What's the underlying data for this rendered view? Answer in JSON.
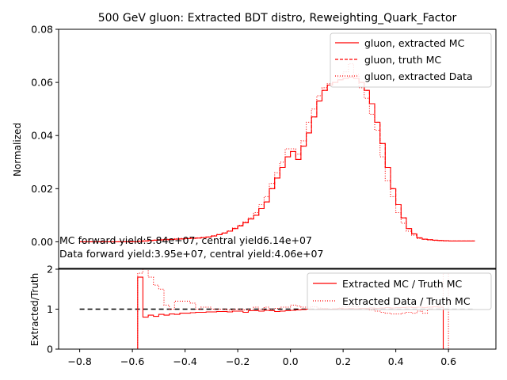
{
  "chart_data": [
    {
      "type": "line",
      "title": "500 GeV gluon: Extracted BDT distro, Reweighting_Quark_Factor",
      "ylabel": "Normalized",
      "xlim": [
        -0.88,
        0.78
      ],
      "ylim": [
        -0.01,
        0.08
      ],
      "yticks": [
        0.0,
        0.02,
        0.04,
        0.06,
        0.08
      ],
      "ytick_labels": [
        "0.00",
        "0.02",
        "0.04",
        "0.06",
        "0.08"
      ],
      "legend": "top-right",
      "bin_edges": [
        -0.8,
        -0.78,
        -0.76,
        -0.74,
        -0.72,
        -0.7,
        -0.68,
        -0.66,
        -0.64,
        -0.62,
        -0.6,
        -0.58,
        -0.56,
        -0.54,
        -0.52,
        -0.5,
        -0.48,
        -0.46,
        -0.44,
        -0.42,
        -0.4,
        -0.38,
        -0.36,
        -0.34,
        -0.32,
        -0.3,
        -0.28,
        -0.26,
        -0.24,
        -0.22,
        -0.2,
        -0.18,
        -0.16,
        -0.14,
        -0.12,
        -0.1,
        -0.08,
        -0.06,
        -0.04,
        -0.02,
        0.0,
        0.02,
        0.04,
        0.06,
        0.08,
        0.1,
        0.12,
        0.14,
        0.16,
        0.18,
        0.2,
        0.22,
        0.24,
        0.26,
        0.28,
        0.3,
        0.32,
        0.34,
        0.36,
        0.38,
        0.4,
        0.42,
        0.44,
        0.46,
        0.48,
        0.5,
        0.52,
        0.54,
        0.56,
        0.58,
        0.6,
        0.62,
        0.64,
        0.66,
        0.68,
        0.7
      ],
      "series": [
        {
          "name": "gluon, extracted MC",
          "style": "solid",
          "color": "#ff0000",
          "values": [
            0,
            0,
            0,
            0,
            0,
            0,
            0,
            0,
            0,
            0,
            0,
            0.0002,
            0.0003,
            0.0005,
            0.0006,
            0.0007,
            0.0008,
            0.0009,
            0.001,
            0.0011,
            0.0012,
            0.0013,
            0.0014,
            0.0016,
            0.0018,
            0.0022,
            0.0027,
            0.0033,
            0.004,
            0.005,
            0.006,
            0.0072,
            0.0086,
            0.01,
            0.0125,
            0.015,
            0.02,
            0.024,
            0.028,
            0.032,
            0.034,
            0.031,
            0.036,
            0.041,
            0.047,
            0.053,
            0.057,
            0.059,
            0.06,
            0.061,
            0.0615,
            0.062,
            0.0615,
            0.06,
            0.057,
            0.052,
            0.045,
            0.037,
            0.028,
            0.02,
            0.014,
            0.009,
            0.005,
            0.003,
            0.0015,
            0.001,
            0.0008,
            0.0006,
            0.0005,
            0.0004,
            0.0003,
            0.0003,
            0.0003,
            0.0003,
            0.0003
          ]
        },
        {
          "name": "gluon, truth MC",
          "style": "dashed",
          "color": "#ff0000",
          "values": [
            0,
            0,
            0,
            0,
            0,
            0,
            0,
            0,
            0,
            0,
            0,
            0.0002,
            0.0003,
            0.0005,
            0.0006,
            0.0007,
            0.0008,
            0.0009,
            0.001,
            0.0011,
            0.0012,
            0.0013,
            0.0014,
            0.0016,
            0.0018,
            0.0022,
            0.0027,
            0.0033,
            0.004,
            0.005,
            0.006,
            0.0072,
            0.0086,
            0.01,
            0.0125,
            0.015,
            0.02,
            0.024,
            0.028,
            0.032,
            0.034,
            0.031,
            0.036,
            0.041,
            0.047,
            0.053,
            0.057,
            0.059,
            0.06,
            0.061,
            0.0615,
            0.062,
            0.0615,
            0.06,
            0.057,
            0.052,
            0.045,
            0.037,
            0.028,
            0.02,
            0.014,
            0.009,
            0.005,
            0.003,
            0.0015,
            0.001,
            0.0008,
            0.0006,
            0.0005,
            0.0004,
            0.0003,
            0.0003,
            0.0003,
            0.0003,
            0.0003
          ]
        },
        {
          "name": "gluon, extracted Data",
          "style": "dotted",
          "color": "#ff0000",
          "values": [
            0,
            0,
            0,
            0,
            0,
            0,
            0,
            0,
            0,
            0,
            0,
            0.0003,
            0.0004,
            0.0006,
            0.0007,
            0.0009,
            0.001,
            0.0011,
            0.0012,
            0.0013,
            0.0013,
            0.0014,
            0.0015,
            0.0017,
            0.0019,
            0.0023,
            0.0028,
            0.0034,
            0.0041,
            0.0052,
            0.0062,
            0.0075,
            0.009,
            0.011,
            0.014,
            0.017,
            0.022,
            0.026,
            0.03,
            0.035,
            0.035,
            0.033,
            0.038,
            0.045,
            0.05,
            0.055,
            0.058,
            0.0595,
            0.06,
            0.062,
            0.064,
            0.067,
            0.063,
            0.058,
            0.054,
            0.048,
            0.042,
            0.032,
            0.023,
            0.017,
            0.011,
            0.007,
            0.004,
            0.0025,
            0.0012,
            0.0009,
            0.0007,
            0.0005,
            0.0004,
            0.0003,
            0.0003,
            0.0003,
            0.0003,
            0.0003,
            0.0003
          ]
        }
      ],
      "annotations": [
        "MC forward yield:5.84e+07, central yield6.14e+07",
        "Data forward yield:3.95e+07, central yield:4.06e+07"
      ]
    },
    {
      "type": "line",
      "ylabel": "Extracted/Truth",
      "xlim": [
        -0.88,
        0.78
      ],
      "ylim": [
        0,
        2
      ],
      "xticks": [
        -0.8,
        -0.6,
        -0.4,
        -0.2,
        0.0,
        0.2,
        0.4,
        0.6
      ],
      "xtick_labels": [
        "−0.8",
        "−0.6",
        "−0.4",
        "−0.2",
        "0.0",
        "0.2",
        "0.4",
        "0.6"
      ],
      "yticks": [
        0,
        1,
        2
      ],
      "ytick_labels": [
        "0",
        "1",
        "2"
      ],
      "legend": "top-right",
      "reference_line": {
        "y": 1,
        "x": [
          -0.8,
          0.7
        ],
        "style": "dashed",
        "color": "#000000"
      },
      "bin_edges": [
        -0.8,
        -0.78,
        -0.76,
        -0.74,
        -0.72,
        -0.7,
        -0.68,
        -0.66,
        -0.64,
        -0.62,
        -0.6,
        -0.58,
        -0.56,
        -0.54,
        -0.52,
        -0.5,
        -0.48,
        -0.46,
        -0.44,
        -0.42,
        -0.4,
        -0.38,
        -0.36,
        -0.34,
        -0.32,
        -0.3,
        -0.28,
        -0.26,
        -0.24,
        -0.22,
        -0.2,
        -0.18,
        -0.16,
        -0.14,
        -0.12,
        -0.1,
        -0.08,
        -0.06,
        -0.04,
        -0.02,
        0.0,
        0.02,
        0.04,
        0.06,
        0.08,
        0.1,
        0.12,
        0.14,
        0.16,
        0.18,
        0.2,
        0.22,
        0.24,
        0.26,
        0.28,
        0.3,
        0.32,
        0.34,
        0.36,
        0.38,
        0.4,
        0.42,
        0.44,
        0.46,
        0.48,
        0.5,
        0.52,
        0.54,
        0.56,
        0.58,
        0.6,
        0.62,
        0.64,
        0.66,
        0.68,
        0.7
      ],
      "series": [
        {
          "name": "Extracted MC / Truth MC",
          "style": "solid",
          "color": "#ff0000",
          "values": [
            0,
            0,
            0,
            0,
            0,
            0,
            0,
            0,
            0,
            0,
            0,
            1.8,
            0.8,
            0.85,
            0.82,
            0.87,
            0.85,
            0.88,
            0.87,
            0.9,
            0.9,
            0.91,
            0.92,
            0.92,
            0.93,
            0.93,
            0.94,
            0.94,
            0.93,
            0.95,
            0.95,
            0.92,
            0.96,
            0.96,
            0.95,
            0.97,
            0.96,
            0.94,
            0.95,
            0.96,
            0.97,
            0.98,
            0.99,
            1.0,
            0.99,
            1.0,
            1.01,
            1.0,
            1.01,
            1.02,
            1.01,
            1.02,
            1.01,
            1.02,
            1.02,
            1.03,
            1.02,
            1.03,
            1.04,
            1.03,
            1.04,
            1.04,
            1.05,
            1.04,
            1.05,
            1.04,
            1.05,
            1.06,
            1.05,
            0,
            0,
            0,
            0,
            0,
            0
          ]
        },
        {
          "name": "Extracted Data / Truth MC",
          "style": "dotted",
          "color": "#ff0000",
          "values": [
            0,
            0,
            0,
            0,
            0,
            0,
            0,
            0,
            0,
            0,
            0,
            1.9,
            2.0,
            1.8,
            1.6,
            1.5,
            1.1,
            1.0,
            1.2,
            1.2,
            1.2,
            1.15,
            1.0,
            1.05,
            1.05,
            1.0,
            1.0,
            1.0,
            0.98,
            1.0,
            1.0,
            0.98,
            1.0,
            1.05,
            1.0,
            1.05,
            1.0,
            1.02,
            1.05,
            1.05,
            1.1,
            1.08,
            1.05,
            1.05,
            1.06,
            1.03,
            1.02,
            1.0,
            1.0,
            1.03,
            1.06,
            1.08,
            1.06,
            1.02,
            1.0,
            0.98,
            0.95,
            0.92,
            0.9,
            0.88,
            0.88,
            0.9,
            0.92,
            0.9,
            0.95,
            0.9,
            1.0,
            1.05,
            1.1,
            1.9,
            0,
            0,
            0,
            0,
            0
          ]
        }
      ]
    }
  ]
}
